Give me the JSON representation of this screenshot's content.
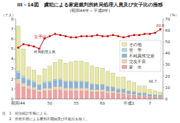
{
  "chart_data": {
    "type": "bar",
    "stacked": true,
    "title": "III－14図　虞犯による家庭裁判所終局処理人員及び女子比の推移",
    "subtitle": "(昭和44年～平成8年)",
    "ylabel": "（十人）",
    "y2label": "（%）",
    "categories": [
      "昭和44",
      null,
      null,
      null,
      null,
      null,
      "50",
      null,
      null,
      null,
      null,
      "55",
      null,
      null,
      null,
      null,
      "60",
      null,
      null,
      null,
      null,
      "平成2",
      null,
      null,
      null,
      "7",
      null,
      null
    ],
    "series": [
      {
        "name": "家　出",
        "color": "#f5a0a0",
        "values": [
          1.5,
          1.2,
          1.0,
          0.9,
          0.7,
          0.8,
          0.8,
          0.9,
          0.9,
          0.8,
          0.8,
          0.8,
          0.8,
          0.8,
          0.7,
          0.7,
          0.7,
          0.6,
          0.6,
          0.5,
          0.5,
          0.4,
          0.4,
          0.3,
          0.3,
          0.2,
          0.2,
          0.2
        ]
      },
      {
        "name": "交友不良",
        "color": "#f0d0b0",
        "values": [
          0.5,
          0.4,
          0.35,
          0.3,
          0.25,
          0.3,
          0.3,
          0.35,
          0.35,
          0.3,
          0.3,
          0.3,
          0.3,
          0.3,
          0.25,
          0.25,
          0.25,
          0.2,
          0.2,
          0.15,
          0.15,
          0.12,
          0.1,
          0.1,
          0.1,
          0.08,
          0.08,
          0.07
        ]
      },
      {
        "name": "不純異性交遊",
        "color": "#8ab4d8",
        "values": [
          0.6,
          0.5,
          0.5,
          0.45,
          0.4,
          0.5,
          0.55,
          0.6,
          0.65,
          0.6,
          0.6,
          0.6,
          0.6,
          0.55,
          0.5,
          0.45,
          0.45,
          0.4,
          0.35,
          0.3,
          0.3,
          0.25,
          0.2,
          0.18,
          0.18,
          0.15,
          0.12,
          0.1
        ]
      },
      {
        "name": "登　学",
        "color": "#b0d8e8",
        "values": [
          0.2,
          0.2,
          0.15,
          0.15,
          0.1,
          0.12,
          0.12,
          0.12,
          0.12,
          0.1,
          0.1,
          0.1,
          0.1,
          0.1,
          0.08,
          0.08,
          0.08,
          0.07,
          0.06,
          0.05,
          0.05,
          0.04,
          0.04,
          0.03,
          0.03,
          0.02,
          0.02,
          0.02
        ]
      },
      {
        "name": "その他",
        "color": "#e8e8a0",
        "values": [
          4.5,
          2.7,
          1.2,
          1.1,
          0.9,
          1.3,
          1.5,
          1.7,
          1.9,
          1.8,
          1.9,
          2.0,
          2.0,
          1.9,
          1.8,
          1.7,
          1.6,
          1.5,
          1.4,
          1.2,
          1.2,
          1.0,
          0.9,
          0.7,
          0.7,
          0.5,
          0.4,
          0.3
        ]
      },
      {
        "name": "女子比",
        "type": "line",
        "axis": "y2",
        "marker": "square",
        "color": "#cc0000",
        "values": [
          45,
          48,
          47,
          46,
          44,
          53,
          55,
          57,
          56,
          55,
          54,
          54,
          55,
          55,
          55,
          56,
          55,
          55,
          56,
          55,
          54,
          55,
          56,
          56,
          57,
          57,
          58,
          61
        ]
      }
    ],
    "ylim": [
      0,
      8
    ],
    "yticks": [
      0,
      1,
      2,
      3,
      4,
      5,
      6,
      7,
      8
    ],
    "y2lim": [
      0,
      70
    ],
    "y2ticks": [
      0,
      10,
      20,
      30,
      40,
      50,
      60,
      70
    ],
    "annotations": [
      "終局処理人員",
      "60.8",
      "66.7"
    ],
    "notes": [
      "注　1　司法統計年報による。",
      "　　2　所在不明による審判不開始及び不処分を除く。"
    ],
    "legend": "upper right",
    "grid": false
  }
}
